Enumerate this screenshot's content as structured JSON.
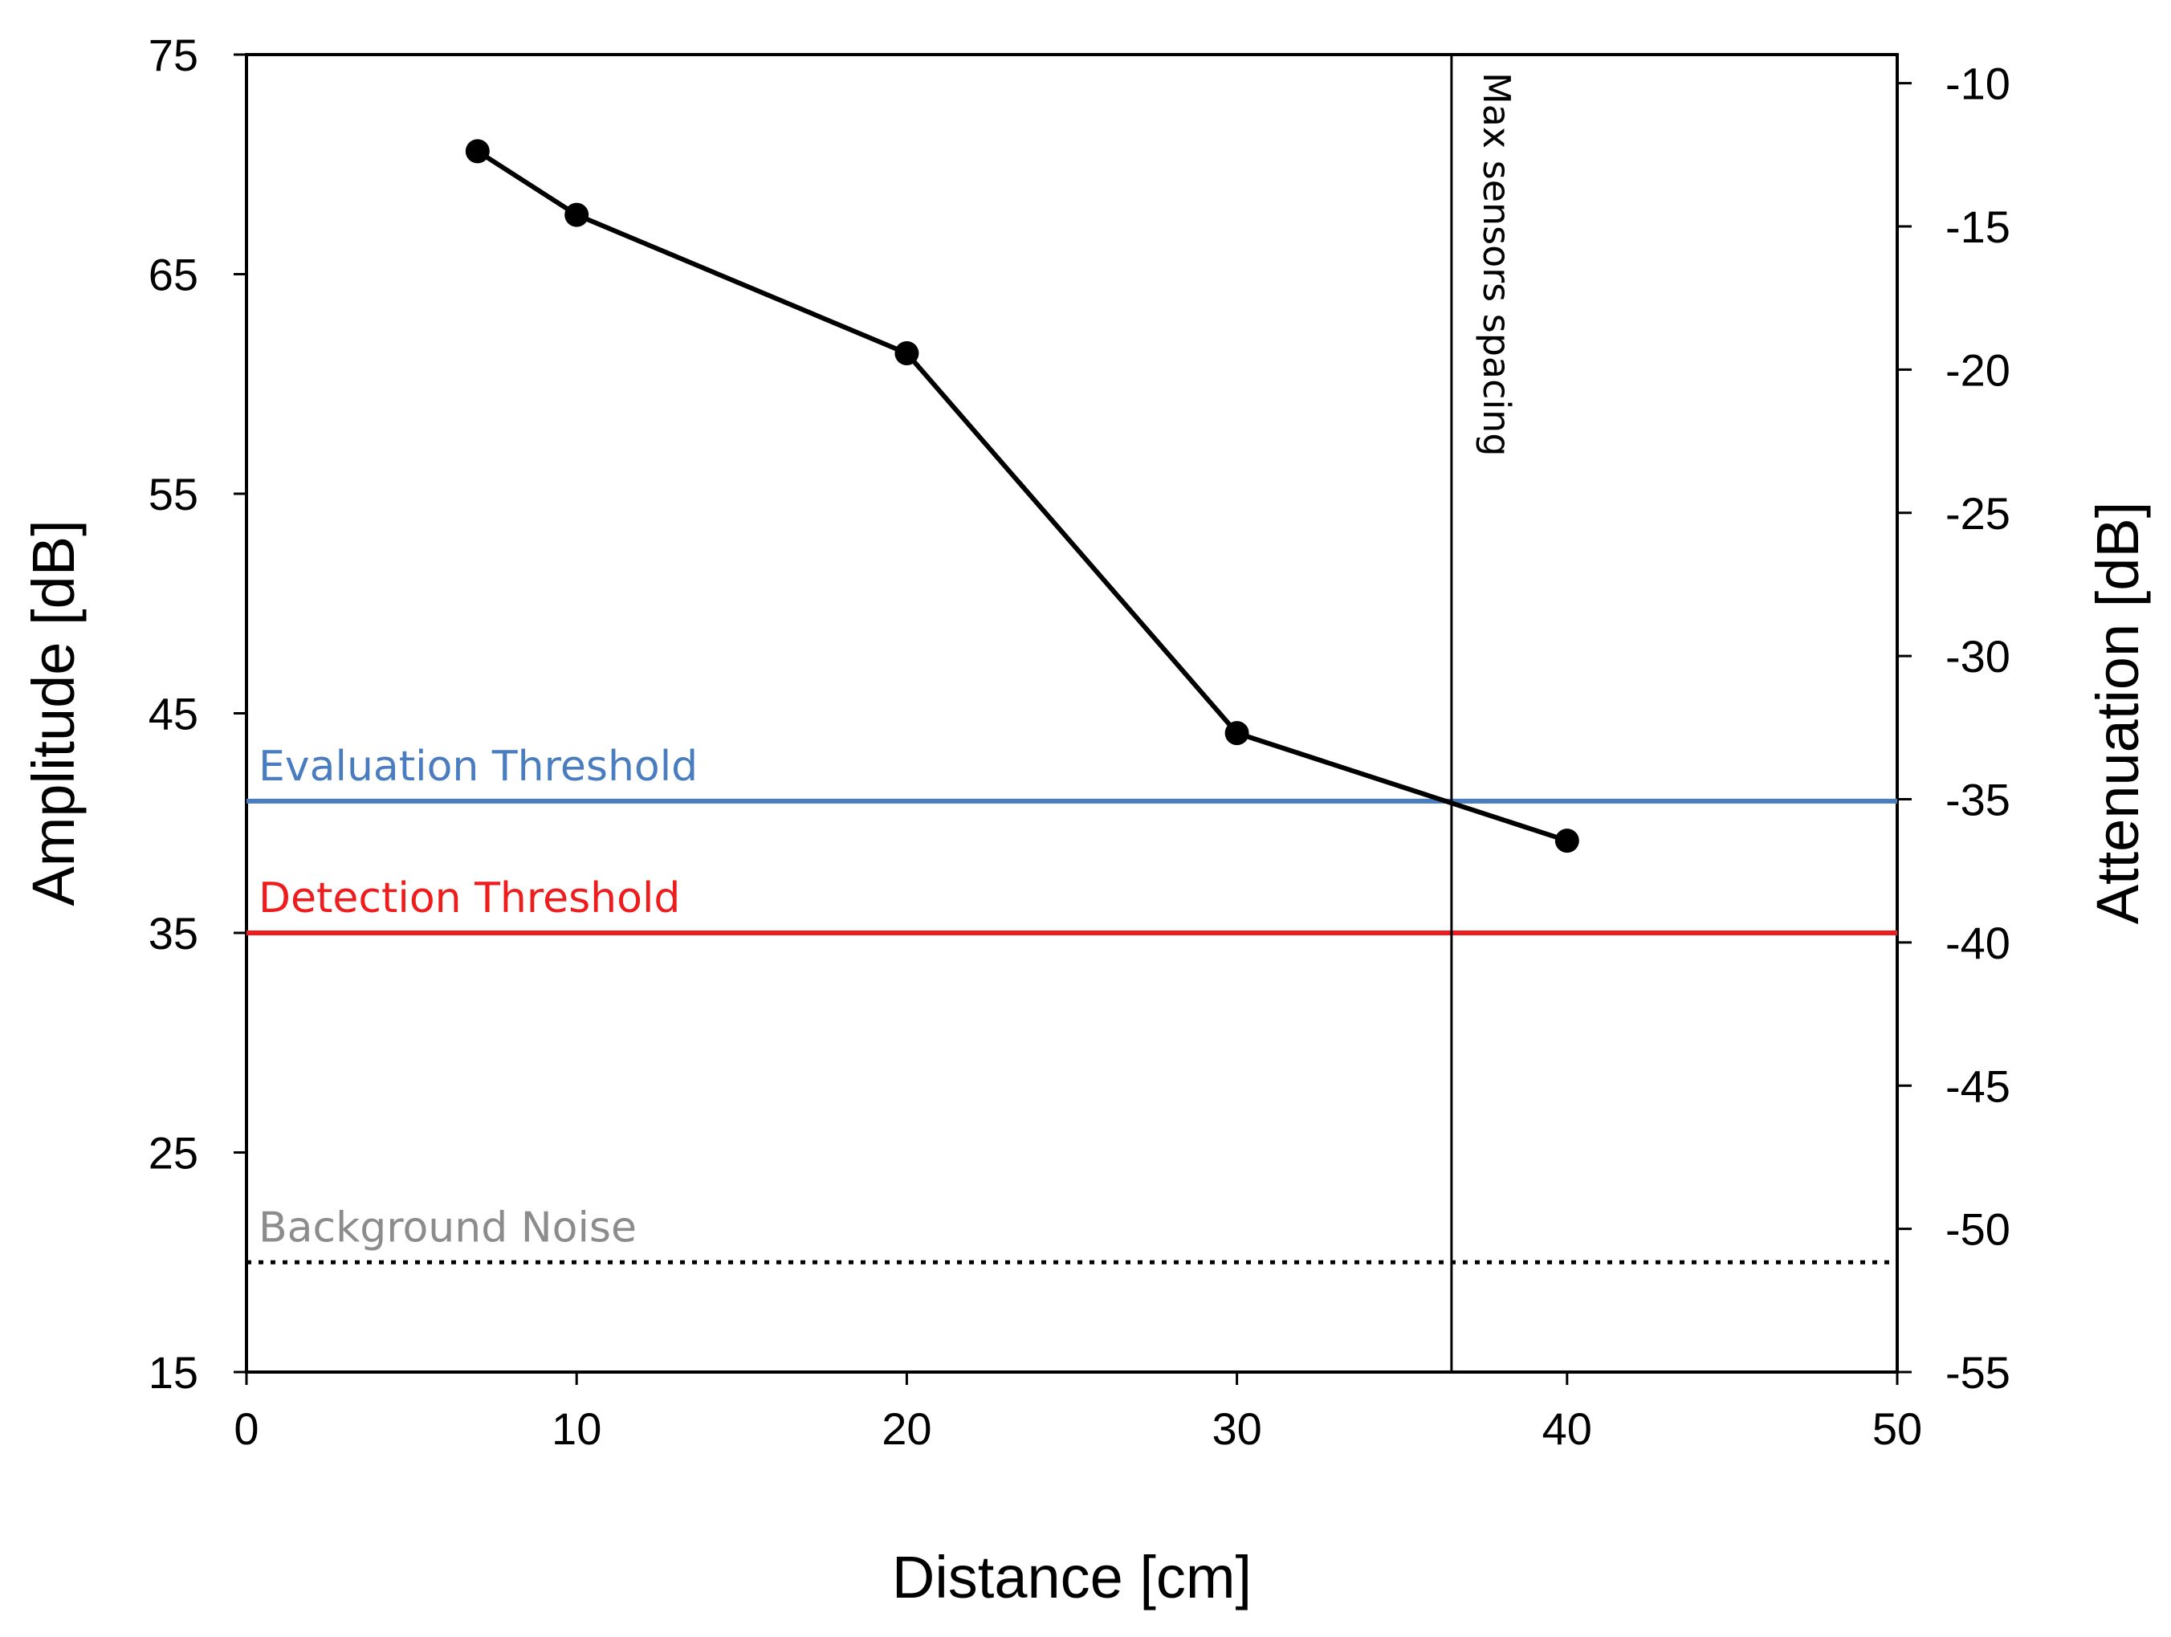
{
  "chart_data": {
    "type": "line",
    "title": "",
    "xlabel": "Distance [cm]",
    "ylabel": "Amplitude [dB]",
    "y2label": "Attenuation [dB]",
    "xlim": [
      0,
      50
    ],
    "ylim": [
      15,
      75
    ],
    "y2lim": [
      -55,
      -9
    ],
    "xticks": [
      0,
      10,
      20,
      30,
      40,
      50
    ],
    "yticks": [
      15,
      25,
      35,
      45,
      55,
      65,
      75
    ],
    "y2ticks": [
      -55,
      -50,
      -45,
      -40,
      -35,
      -30,
      -25,
      -20,
      -15,
      -10
    ],
    "grid": false,
    "series": [
      {
        "name": "Amplitude",
        "color": "#000000",
        "x": [
          7,
          10,
          20,
          30,
          40
        ],
        "y": [
          70.6,
          67.7,
          61.4,
          44.1,
          39.2
        ]
      }
    ],
    "hlines": [
      {
        "name": "evaluation-threshold",
        "label": "Evaluation Threshold",
        "y": 41,
        "color": "#4a7cc0",
        "style": "solid"
      },
      {
        "name": "detection-threshold",
        "label": "Detection Threshold",
        "y": 35,
        "color": "#ee1c1c",
        "style": "solid"
      },
      {
        "name": "background-noise",
        "label": "Background Noise",
        "y": 20,
        "color": "#000000",
        "label_color": "#8c8c8c",
        "style": "dotted"
      }
    ],
    "vlines": [
      {
        "name": "max-sensors-spacing",
        "label": "Max sensors spacing",
        "x": 36.5,
        "color": "#000000"
      }
    ]
  }
}
